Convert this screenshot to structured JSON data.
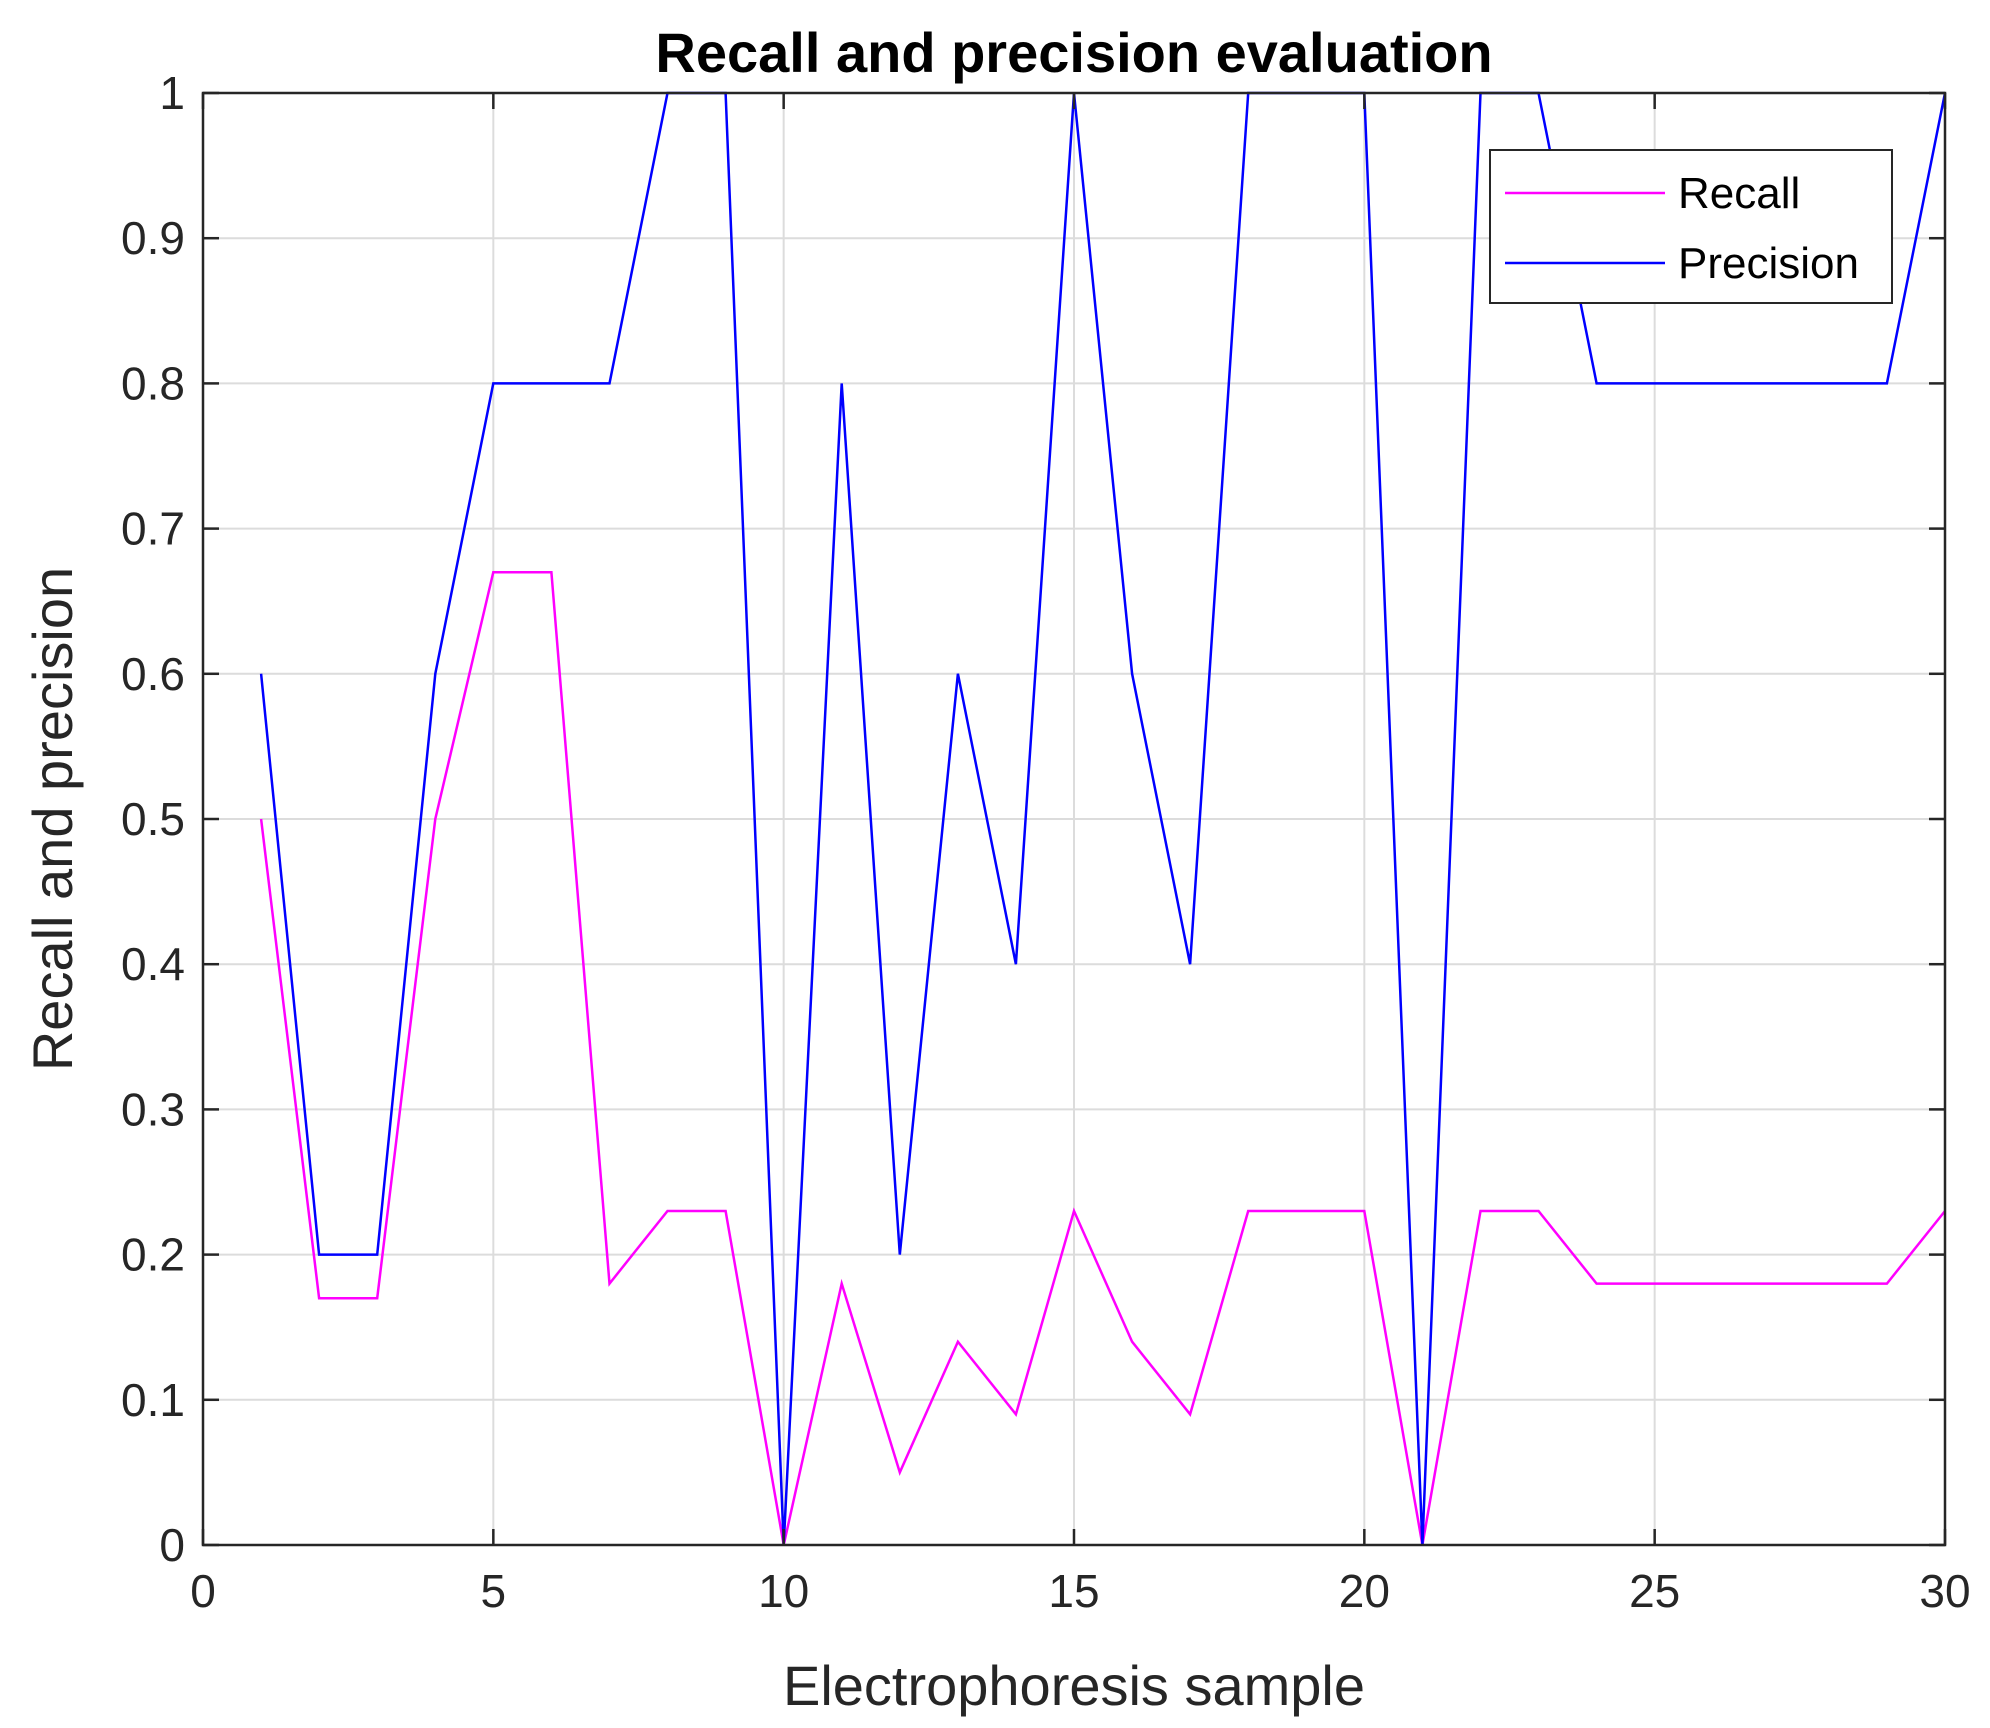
{
  "chart_data": {
    "type": "line",
    "title": "Recall and precision evaluation",
    "xlabel": "Electrophoresis sample",
    "ylabel": "Recall and precision",
    "xlim": [
      0,
      30
    ],
    "ylim": [
      0,
      1
    ],
    "xticks": [
      0,
      5,
      10,
      15,
      20,
      25,
      30
    ],
    "yticks": [
      0,
      0.1,
      0.2,
      0.3,
      0.4,
      0.5,
      0.6,
      0.7,
      0.8,
      0.9,
      1
    ],
    "grid": true,
    "legend_position": "top-right",
    "x": [
      1,
      2,
      3,
      4,
      5,
      6,
      7,
      8,
      9,
      10,
      11,
      12,
      13,
      14,
      15,
      16,
      17,
      18,
      19,
      20,
      21,
      22,
      23,
      24,
      25,
      26,
      27,
      28,
      29,
      30
    ],
    "series": [
      {
        "name": "Recall",
        "color": "#ff00ff",
        "values": [
          0.5,
          0.17,
          0.17,
          0.5,
          0.67,
          0.67,
          0.18,
          0.23,
          0.23,
          0,
          0.18,
          0.05,
          0.14,
          0.09,
          0.23,
          0.14,
          0.09,
          0.23,
          0.23,
          0.23,
          0,
          0.23,
          0.23,
          0.18,
          0.18,
          0.18,
          0.18,
          0.18,
          0.18,
          0.23
        ]
      },
      {
        "name": "Precision",
        "color": "#0000ff",
        "values": [
          0.6,
          0.2,
          0.2,
          0.6,
          0.8,
          0.8,
          0.8,
          1,
          1,
          0,
          0.8,
          0.2,
          0.6,
          0.4,
          1,
          0.6,
          0.4,
          1,
          1,
          1,
          0,
          1,
          1,
          0.8,
          0.8,
          0.8,
          0.8,
          0.8,
          0.8,
          1
        ]
      }
    ]
  }
}
